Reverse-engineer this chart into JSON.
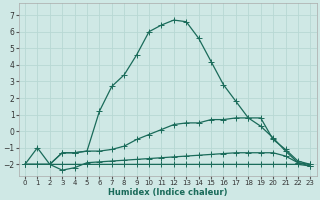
{
  "xlabel": "Humidex (Indice chaleur)",
  "xlim": [
    -0.5,
    23.5
  ],
  "ylim": [
    -2.7,
    7.7
  ],
  "yticks": [
    -2,
    -1,
    0,
    1,
    2,
    3,
    4,
    5,
    6,
    7
  ],
  "xticks": [
    0,
    1,
    2,
    3,
    4,
    5,
    6,
    7,
    8,
    9,
    10,
    11,
    12,
    13,
    14,
    15,
    16,
    17,
    18,
    19,
    20,
    21,
    22,
    23
  ],
  "background_color": "#cfe8e5",
  "grid_color": "#b8d8d4",
  "line_color": "#1a6b5a",
  "line1_x": [
    0,
    1,
    2,
    3,
    4,
    5,
    6,
    7,
    8,
    9,
    10,
    11,
    12,
    13,
    14,
    15,
    16,
    17,
    18,
    19,
    20,
    21,
    22,
    23
  ],
  "line1_y": [
    -2.0,
    -1.0,
    -2.0,
    -1.3,
    -1.3,
    -1.2,
    -1.2,
    -1.1,
    -0.9,
    -0.5,
    -0.2,
    0.1,
    0.4,
    0.5,
    0.5,
    0.7,
    0.7,
    0.8,
    0.8,
    0.8,
    -0.5,
    -1.1,
    -1.8,
    -2.0
  ],
  "line2_x": [
    0,
    1,
    2,
    3,
    4,
    5,
    6,
    7,
    8,
    9,
    10,
    11,
    12,
    13,
    14,
    15,
    16,
    17,
    18,
    19,
    20,
    21,
    22,
    23
  ],
  "line2_y": [
    -2.0,
    -2.0,
    -2.0,
    -2.35,
    -2.2,
    -1.9,
    -1.85,
    -1.8,
    -1.75,
    -1.7,
    -1.65,
    -1.6,
    -1.55,
    -1.5,
    -1.45,
    -1.4,
    -1.35,
    -1.3,
    -1.3,
    -1.3,
    -1.3,
    -1.5,
    -1.9,
    -2.1
  ],
  "line3_x": [
    0,
    1,
    2,
    3,
    4,
    5,
    6,
    7,
    8,
    9,
    10,
    11,
    12,
    13,
    14,
    15,
    16,
    17,
    18,
    19,
    20,
    21,
    22,
    23
  ],
  "line3_y": [
    -2.0,
    -2.0,
    -2.0,
    -2.0,
    -2.0,
    -2.0,
    -2.0,
    -2.0,
    -2.0,
    -2.0,
    -2.0,
    -2.0,
    -2.0,
    -2.0,
    -2.0,
    -2.0,
    -2.0,
    -2.0,
    -2.0,
    -2.0,
    -2.0,
    -2.0,
    -2.0,
    -2.1
  ],
  "line4_x": [
    0,
    1,
    2,
    3,
    4,
    5,
    6,
    7,
    8,
    9,
    10,
    11,
    12,
    13,
    14,
    15,
    16,
    17,
    18,
    19,
    20,
    21,
    22,
    23
  ],
  "line4_y": [
    -2.0,
    -2.0,
    -2.0,
    -1.3,
    -1.3,
    -1.2,
    1.2,
    2.7,
    3.4,
    4.6,
    6.0,
    6.4,
    6.7,
    6.6,
    5.6,
    4.2,
    2.8,
    1.8,
    0.8,
    0.3,
    -0.4,
    -1.2,
    -1.9,
    -2.0
  ],
  "marker": "+",
  "markersize": 4,
  "linewidth": 0.9
}
